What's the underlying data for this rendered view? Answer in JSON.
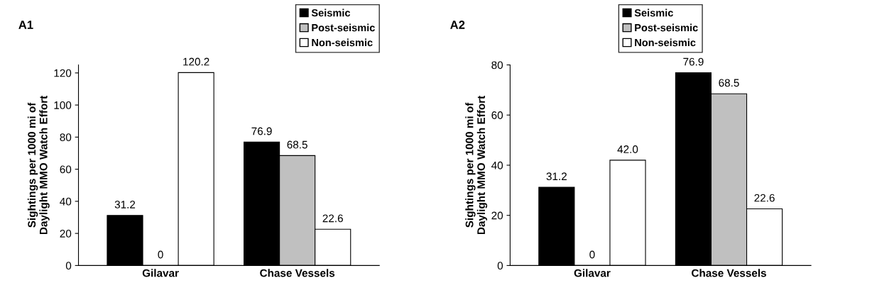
{
  "chart_data": [
    {
      "type": "bar",
      "title": "A1",
      "ylabel": "Sightings per 1000 mi of\nDaylight MMO Watch Effort",
      "categories": [
        "Gilavar",
        "Chase Vessels"
      ],
      "ylim": [
        0,
        125
      ],
      "yticks": [
        0,
        20,
        40,
        60,
        80,
        100,
        120
      ],
      "grid": false,
      "legend": "top right",
      "series": [
        {
          "name": "Seismic",
          "color": "#000000",
          "values": [
            31.2,
            76.9
          ],
          "value_labels": [
            "31.2",
            "76.9"
          ]
        },
        {
          "name": "Post-seismic",
          "color": "#c0c0c0",
          "values": [
            0,
            68.5
          ],
          "value_labels": [
            "0",
            "68.5"
          ]
        },
        {
          "name": "Non-seismic",
          "color": "#ffffff",
          "values": [
            120.2,
            22.6
          ],
          "value_labels": [
            "120.2",
            "22.6"
          ]
        }
      ]
    },
    {
      "type": "bar",
      "title": "A2",
      "ylabel": "Sightings per 1000 mi of\nDaylight MMO Watch Effort",
      "categories": [
        "Gilavar",
        "Chase Vessels"
      ],
      "ylim": [
        0,
        80
      ],
      "yticks": [
        0,
        20,
        40,
        60,
        80
      ],
      "grid": false,
      "legend": "top",
      "series": [
        {
          "name": "Seismic",
          "color": "#000000",
          "values": [
            31.2,
            76.9
          ],
          "value_labels": [
            "31.2",
            "76.9"
          ]
        },
        {
          "name": "Post-seismic",
          "color": "#c0c0c0",
          "values": [
            0,
            68.5
          ],
          "value_labels": [
            "0",
            "68.5"
          ]
        },
        {
          "name": "Non-seismic",
          "color": "#ffffff",
          "values": [
            42.0,
            22.6
          ],
          "value_labels": [
            "42.0",
            "22.6"
          ]
        }
      ]
    }
  ]
}
